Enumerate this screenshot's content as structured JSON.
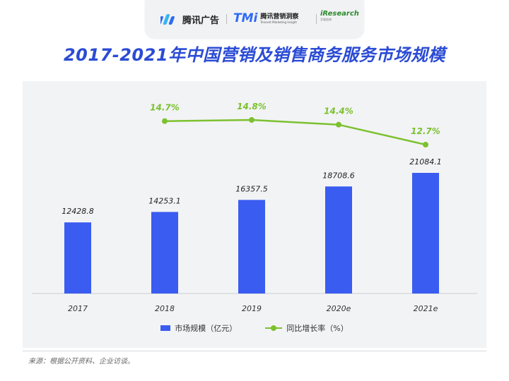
{
  "brands": {
    "tencent_ads": "腾讯广告",
    "tmi_mark": "TMi",
    "tmi_name": "腾讯营销洞察",
    "tmi_english": "Tencent Marketing Insight",
    "iresearch": "iResearch",
    "iresearch_sub": "艾瑞咨询"
  },
  "colors": {
    "bar": "#3a5cf0",
    "line": "#7cc12f",
    "title": "#2b4bd4"
  },
  "chart_data": {
    "type": "bar",
    "title": "2017-2021年中国营销及销售商务服务市场规模",
    "categories": [
      "2017",
      "2018",
      "2019",
      "2020e",
      "2021e"
    ],
    "series": [
      {
        "name": "市场规模（亿元）",
        "type": "bar",
        "values": [
          12428.8,
          14253.1,
          16357.5,
          18708.6,
          21084.1
        ],
        "labels": [
          "12428.8",
          "14253.1",
          "16357.5",
          "18708.6",
          "21084.1"
        ]
      },
      {
        "name": "同比增长率（%）",
        "type": "line",
        "values": [
          null,
          14.7,
          14.8,
          14.4,
          12.7
        ],
        "labels": [
          "",
          "14.7%",
          "14.8%",
          "14.4%",
          "12.7%"
        ]
      }
    ],
    "bar_ylim": [
      0,
      25000
    ],
    "line_ylim": [
      0,
      16
    ],
    "legend_position": "bottom"
  },
  "source": "来源：根据公开资料、企业访谈。"
}
